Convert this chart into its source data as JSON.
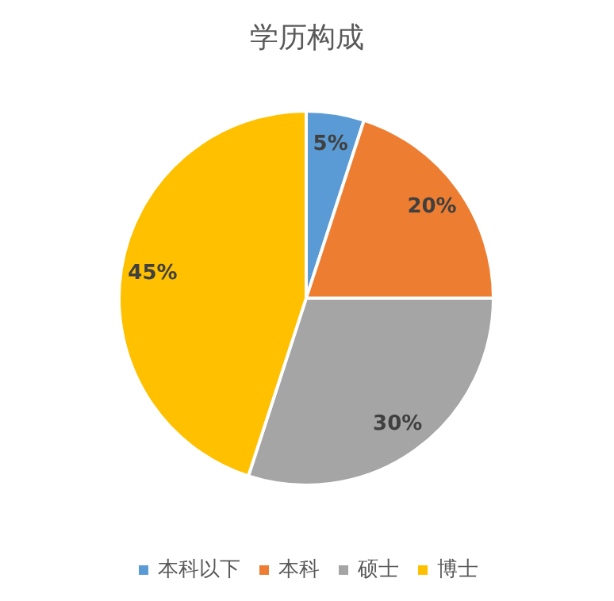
{
  "chart_data": {
    "type": "pie",
    "title": "学历构成",
    "categories": [
      "本科以下",
      "本科",
      "硕士",
      "博士"
    ],
    "values": [
      5,
      20,
      30,
      45
    ],
    "colors": [
      "#5b9bd5",
      "#ed7d31",
      "#a5a5a5",
      "#ffc000"
    ],
    "value_labels": [
      "5%",
      "20%",
      "30%",
      "45%"
    ],
    "legend": "bottom"
  }
}
